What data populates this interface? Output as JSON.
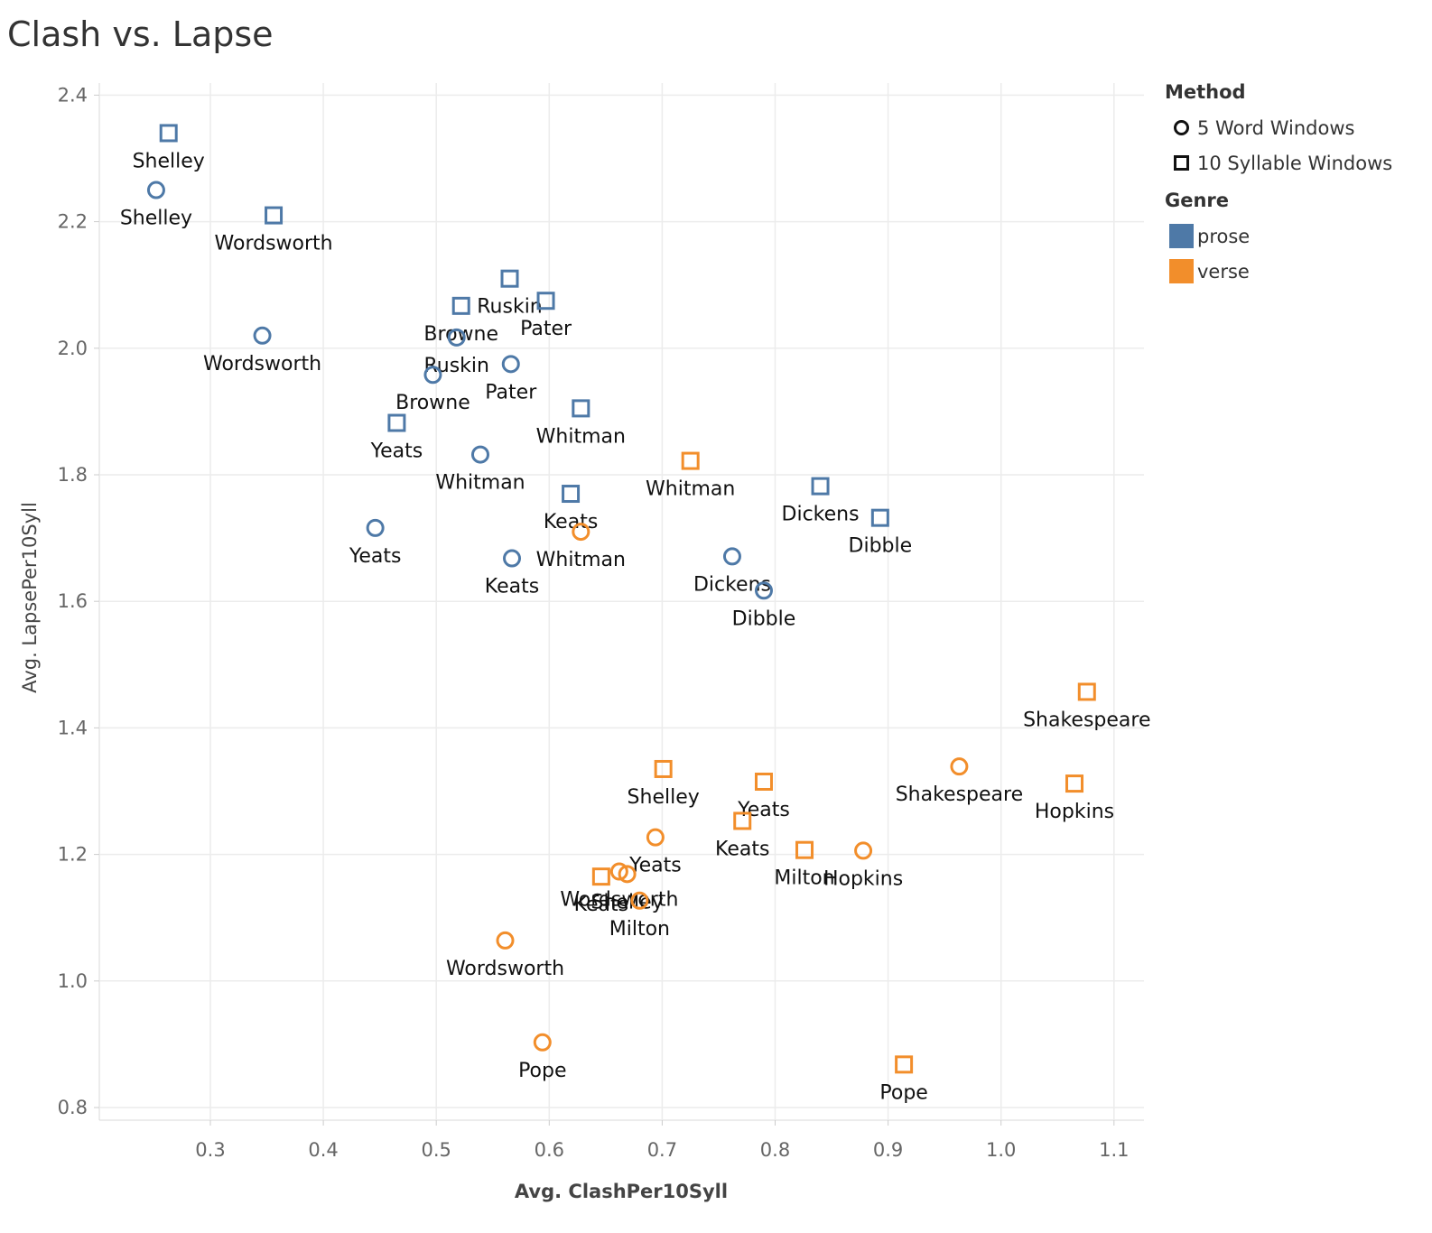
{
  "title": "Clash vs. Lapse",
  "legend": {
    "method_title": "Method",
    "methods": [
      {
        "label": "5 Word Windows",
        "shape": "circle"
      },
      {
        "label": "10 Syllable Windows",
        "shape": "square"
      }
    ],
    "genre_title": "Genre",
    "genres": [
      {
        "label": "prose",
        "color": "#4e79a7"
      },
      {
        "label": "verse",
        "color": "#f28e2b"
      }
    ]
  },
  "chart_data": {
    "type": "scatter",
    "title": "Clash vs. Lapse",
    "xlabel": "Avg. ClashPer10Syll",
    "ylabel": "Avg. LapsePer10Syll",
    "xlim": [
      0.2,
      1.225
    ],
    "ylim": [
      0.78,
      2.42
    ],
    "xticks": [
      "0.3",
      "0.4",
      "0.5",
      "0.6",
      "0.7",
      "0.8",
      "0.9",
      "1.0",
      "1.1"
    ],
    "yticks": [
      "0.8",
      "1.0",
      "1.2",
      "1.4",
      "1.6",
      "1.8",
      "2.0",
      "2.2",
      "2.4"
    ],
    "grid": true,
    "legend_position": "right",
    "colors": {
      "prose": "#4e79a7",
      "verse": "#f28e2b"
    },
    "points": [
      {
        "label": "Shelley",
        "x": 0.263,
        "y": 2.34,
        "genre": "prose",
        "method": "10 Syllable Windows"
      },
      {
        "label": "Shelley",
        "x": 0.252,
        "y": 2.25,
        "genre": "prose",
        "method": "5 Word Windows"
      },
      {
        "label": "Wordsworth",
        "x": 0.356,
        "y": 2.21,
        "genre": "prose",
        "method": "10 Syllable Windows"
      },
      {
        "label": "Wordsworth",
        "x": 0.346,
        "y": 2.02,
        "genre": "prose",
        "method": "5 Word Windows"
      },
      {
        "label": "Ruskin",
        "x": 0.565,
        "y": 2.11,
        "genre": "prose",
        "method": "10 Syllable Windows"
      },
      {
        "label": "Pater",
        "x": 0.597,
        "y": 2.075,
        "genre": "prose",
        "method": "10 Syllable Windows"
      },
      {
        "label": "Browne",
        "x": 0.522,
        "y": 2.067,
        "genre": "prose",
        "method": "10 Syllable Windows"
      },
      {
        "label": "Ruskin",
        "x": 0.518,
        "y": 2.017,
        "genre": "prose",
        "method": "5 Word Windows"
      },
      {
        "label": "Pater",
        "x": 0.566,
        "y": 1.975,
        "genre": "prose",
        "method": "5 Word Windows"
      },
      {
        "label": "Browne",
        "x": 0.497,
        "y": 1.958,
        "genre": "prose",
        "method": "5 Word Windows"
      },
      {
        "label": "Whitman",
        "x": 0.628,
        "y": 1.905,
        "genre": "prose",
        "method": "10 Syllable Windows"
      },
      {
        "label": "Yeats",
        "x": 0.465,
        "y": 1.882,
        "genre": "prose",
        "method": "10 Syllable Windows"
      },
      {
        "label": "Whitman",
        "x": 0.539,
        "y": 1.832,
        "genre": "prose",
        "method": "5 Word Windows"
      },
      {
        "label": "Keats",
        "x": 0.619,
        "y": 1.77,
        "genre": "prose",
        "method": "10 Syllable Windows"
      },
      {
        "label": "Yeats",
        "x": 0.446,
        "y": 1.716,
        "genre": "prose",
        "method": "5 Word Windows"
      },
      {
        "label": "Keats",
        "x": 0.567,
        "y": 1.668,
        "genre": "prose",
        "method": "5 Word Windows"
      },
      {
        "label": "Dickens",
        "x": 0.84,
        "y": 1.782,
        "genre": "prose",
        "method": "10 Syllable Windows"
      },
      {
        "label": "Dibble",
        "x": 0.893,
        "y": 1.732,
        "genre": "prose",
        "method": "10 Syllable Windows"
      },
      {
        "label": "Dickens",
        "x": 0.762,
        "y": 1.671,
        "genre": "prose",
        "method": "5 Word Windows"
      },
      {
        "label": "Dibble",
        "x": 0.79,
        "y": 1.617,
        "genre": "prose",
        "method": "5 Word Windows"
      },
      {
        "label": "Whitman",
        "x": 0.725,
        "y": 1.822,
        "genre": "verse",
        "method": "10 Syllable Windows"
      },
      {
        "label": "Whitman",
        "x": 0.628,
        "y": 1.71,
        "genre": "verse",
        "method": "5 Word Windows"
      },
      {
        "label": "Shakespeare",
        "x": 1.076,
        "y": 1.457,
        "genre": "verse",
        "method": "10 Syllable Windows"
      },
      {
        "label": "Shakespeare",
        "x": 0.963,
        "y": 1.339,
        "genre": "verse",
        "method": "5 Word Windows"
      },
      {
        "label": "Hopkins",
        "x": 1.065,
        "y": 1.312,
        "genre": "verse",
        "method": "10 Syllable Windows"
      },
      {
        "label": "Shelley",
        "x": 0.701,
        "y": 1.335,
        "genre": "verse",
        "method": "10 Syllable Windows"
      },
      {
        "label": "Yeats",
        "x": 0.79,
        "y": 1.315,
        "genre": "verse",
        "method": "10 Syllable Windows"
      },
      {
        "label": "Keats",
        "x": 0.771,
        "y": 1.253,
        "genre": "verse",
        "method": "10 Syllable Windows"
      },
      {
        "label": "Milton",
        "x": 0.826,
        "y": 1.207,
        "genre": "verse",
        "method": "10 Syllable Windows"
      },
      {
        "label": "Hopkins",
        "x": 0.878,
        "y": 1.206,
        "genre": "verse",
        "method": "5 Word Windows"
      },
      {
        "label": "Yeats",
        "x": 0.694,
        "y": 1.227,
        "genre": "verse",
        "method": "5 Word Windows"
      },
      {
        "label": "Wordsworth",
        "x": 0.662,
        "y": 1.173,
        "genre": "verse",
        "method": "5 Word Windows"
      },
      {
        "label": "Shelley",
        "x": 0.669,
        "y": 1.169,
        "genre": "verse",
        "method": "5 Word Windows"
      },
      {
        "label": "Keats",
        "x": 0.646,
        "y": 1.165,
        "genre": "verse",
        "method": "10 Syllable Windows"
      },
      {
        "label": "Milton",
        "x": 0.68,
        "y": 1.127,
        "genre": "verse",
        "method": "5 Word Windows"
      },
      {
        "label": "Wordsworth",
        "x": 0.561,
        "y": 1.064,
        "genre": "verse",
        "method": "5 Word Windows"
      },
      {
        "label": "Pope",
        "x": 0.594,
        "y": 0.903,
        "genre": "verse",
        "method": "5 Word Windows"
      },
      {
        "label": "Pope",
        "x": 0.914,
        "y": 0.868,
        "genre": "verse",
        "method": "10 Syllable Windows"
      }
    ]
  }
}
